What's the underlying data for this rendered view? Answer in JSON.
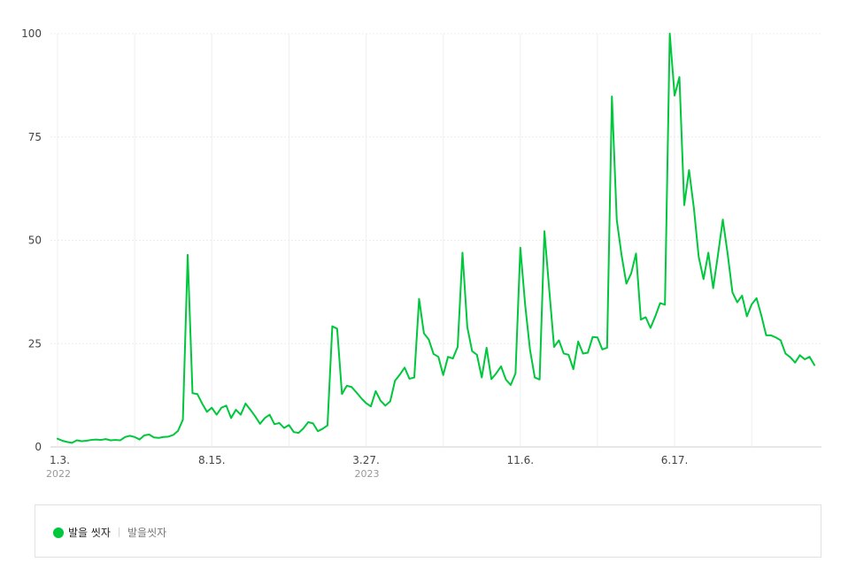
{
  "chart_data": {
    "type": "line",
    "ylim": [
      0,
      100
    ],
    "yticks": [
      0,
      25,
      50,
      75,
      100
    ],
    "ytick_labels": [
      "0",
      "25",
      "50",
      "75",
      "100"
    ],
    "xticks": [
      {
        "index": 0,
        "label": "1.3.",
        "sub": "2022"
      },
      {
        "index": 32,
        "label": "8.15.",
        "sub": ""
      },
      {
        "index": 64,
        "label": "3.27.",
        "sub": "2023"
      },
      {
        "index": 96,
        "label": "11.6.",
        "sub": ""
      },
      {
        "index": 128,
        "label": "6.17.",
        "sub": ""
      }
    ],
    "legend_position": "bottom",
    "series": [
      {
        "name": "발을 씻자",
        "color": "#00c73c",
        "values": [
          2,
          1.5,
          1.2,
          1,
          1.6,
          1.4,
          1.5,
          1.7,
          1.8,
          1.7,
          1.9,
          1.6,
          1.7,
          1.6,
          2.4,
          2.7,
          2.4,
          1.8,
          2.8,
          3,
          2.3,
          2.2,
          2.4,
          2.5,
          2.9,
          3.9,
          6.6,
          46.5,
          13,
          12.8,
          10.5,
          8.5,
          9.5,
          7.8,
          9.5,
          10,
          7,
          9,
          7.8,
          10.5,
          9,
          7.4,
          5.6,
          7,
          7.8,
          5.5,
          5.8,
          4.6,
          5.3,
          3.6,
          3.4,
          4.5,
          6,
          5.7,
          3.8,
          4.4,
          5.2,
          29.2,
          28.6,
          12.8,
          14.8,
          14.5,
          13.2,
          11.8,
          10.6,
          9.8,
          13.5,
          11.2,
          10,
          11,
          16,
          17.5,
          19.2,
          16.5,
          16.8,
          35.8,
          27.5,
          26,
          22.5,
          21.8,
          17.4,
          21.8,
          21.4,
          24.2,
          47,
          29,
          23.2,
          22.3,
          16.8,
          24,
          16.4,
          17.8,
          19.5,
          16.3,
          15,
          17.8,
          48.2,
          34.4,
          23.6,
          16.8,
          16.3,
          52.2,
          38,
          24.2,
          25.8,
          22.6,
          22.3,
          18.8,
          25.5,
          22.6,
          22.8,
          26.6,
          26.5,
          23.6,
          24,
          84.8,
          55,
          46.4,
          39.5,
          42,
          46.8,
          30.8,
          31.4,
          28.8,
          31.6,
          34.8,
          34.4,
          100,
          85,
          89.5,
          58.5,
          67,
          57.8,
          46,
          40.6,
          47,
          38.4,
          46.5,
          55,
          46.8,
          37.4,
          35,
          36.6,
          31.6,
          34.5,
          36,
          31.8,
          27,
          27,
          26.5,
          25.8,
          22.6,
          21.7,
          20.4,
          22.2,
          21.2,
          21.8,
          19.8
        ]
      }
    ]
  },
  "legend": {
    "label": "발을 씻자",
    "sublabel": "발을씻자"
  }
}
